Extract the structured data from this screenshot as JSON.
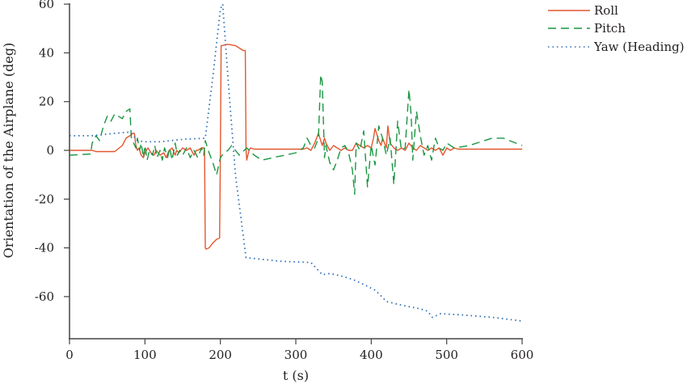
{
  "chart_data": {
    "type": "line",
    "title": "",
    "xlabel": "t (s)",
    "ylabel": "Orientation of the Airplane (deg)",
    "xlim": [
      0,
      600
    ],
    "ylim": [
      -78,
      60
    ],
    "xticks": [
      0,
      100,
      200,
      300,
      400,
      500,
      600
    ],
    "yticks": [
      -60,
      -40,
      -20,
      0,
      20,
      40,
      60
    ],
    "grid": false,
    "legend_position": "upper right (outside plot)",
    "series": [
      {
        "name": "Roll",
        "color": "#e4572e",
        "style": "solid",
        "x": [
          0,
          30,
          35,
          60,
          70,
          75,
          80,
          84,
          86,
          88,
          90,
          92,
          95,
          98,
          100,
          104,
          108,
          112,
          115,
          120,
          125,
          128,
          132,
          136,
          140,
          142,
          145,
          150,
          155,
          160,
          165,
          168,
          170,
          175,
          178,
          179,
          180,
          181,
          185,
          190,
          195,
          199,
          200,
          201,
          202,
          210,
          220,
          230,
          233,
          234,
          235,
          238,
          240,
          245,
          250,
          300,
          310,
          315,
          320,
          325,
          330,
          333,
          335,
          338,
          340,
          345,
          350,
          355,
          360,
          365,
          370,
          375,
          380,
          385,
          390,
          395,
          400,
          403,
          405,
          410,
          413,
          415,
          420,
          422,
          425,
          430,
          435,
          440,
          445,
          450,
          455,
          460,
          465,
          470,
          475,
          480,
          485,
          490,
          495,
          500,
          505,
          510,
          515,
          520,
          560,
          600
        ],
        "values": [
          0,
          0,
          -0.5,
          -0.5,
          2,
          5,
          6,
          7,
          7,
          2,
          0,
          1,
          -2,
          -3,
          -1,
          1,
          -1,
          -2,
          0,
          -2,
          -1,
          -3,
          0,
          1,
          -2,
          0,
          -1,
          1,
          0,
          1,
          -2,
          0,
          0,
          1,
          1,
          0,
          -40,
          -40.5,
          -40,
          -38,
          -36.5,
          -36,
          0,
          43,
          43,
          43.5,
          43,
          41,
          41,
          0,
          -4,
          0,
          1,
          0.5,
          0.5,
          0.5,
          0.5,
          1,
          0,
          3,
          7,
          4,
          2,
          5,
          3,
          0,
          2,
          1,
          0,
          1,
          0,
          0,
          3,
          2,
          1,
          2,
          1,
          5,
          9,
          4,
          2,
          5,
          1,
          10,
          3,
          1,
          0,
          1,
          0,
          3,
          1,
          0,
          2,
          1,
          0,
          1,
          0,
          1,
          -2,
          1,
          0,
          1,
          0.5,
          0.5,
          0.5,
          0.5
        ]
      },
      {
        "name": "Pitch",
        "color": "#1a9641",
        "style": "dashed",
        "x": [
          0,
          28,
          30,
          35,
          40,
          45,
          50,
          55,
          60,
          65,
          70,
          75,
          80,
          82,
          85,
          88,
          90,
          93,
          95,
          98,
          100,
          103,
          106,
          110,
          113,
          116,
          120,
          123,
          126,
          130,
          133,
          136,
          140,
          143,
          146,
          150,
          155,
          160,
          165,
          170,
          175,
          178,
          180,
          185,
          190,
          195,
          200,
          205,
          210,
          215,
          225,
          235,
          245,
          255,
          270,
          285,
          300,
          310,
          315,
          320,
          325,
          330,
          333,
          335,
          338,
          340,
          345,
          350,
          355,
          360,
          365,
          370,
          375,
          378,
          380,
          385,
          390,
          395,
          400,
          405,
          410,
          415,
          420,
          425,
          430,
          435,
          440,
          445,
          450,
          453,
          455,
          460,
          465,
          470,
          475,
          480,
          485,
          490,
          495,
          500,
          510,
          530,
          560,
          575,
          600
        ],
        "values": [
          -2,
          -1.5,
          3,
          6,
          4,
          10,
          14,
          12,
          15,
          14,
          13,
          16,
          17,
          5,
          3,
          1,
          5,
          0,
          3,
          -3,
          2,
          -4,
          0,
          -2,
          2,
          -3,
          0,
          -4,
          1,
          -3,
          1,
          -4,
          3,
          -2,
          0,
          -2,
          1,
          -3,
          0,
          -3,
          1,
          -2,
          4,
          -1,
          -5,
          -10,
          -3,
          -1,
          0,
          2,
          -2,
          1,
          -2,
          -4,
          -3,
          -2,
          -1,
          1,
          5,
          2,
          1,
          5,
          31,
          28,
          -3,
          2,
          -5,
          -8,
          -4,
          1,
          2,
          -1,
          -8,
          -18,
          3,
          0,
          8,
          -15,
          2,
          -6,
          10,
          5,
          -2,
          5,
          -14,
          12,
          0,
          1,
          25,
          14,
          -4,
          16,
          6,
          -2,
          2,
          -4,
          5,
          1,
          0,
          3,
          1,
          2,
          5,
          5,
          2
        ]
      },
      {
        "name": "Yaw (Heading)",
        "color": "#2b6cb0",
        "style": "dotted",
        "x": [
          0,
          30,
          60,
          80,
          85,
          90,
          100,
          120,
          150,
          180,
          190,
          200,
          203,
          210,
          220,
          234,
          250,
          280,
          320,
          335,
          345,
          360,
          376,
          390,
          406,
          420,
          440,
          465,
          475,
          481,
          492,
          520,
          560,
          600
        ],
        "values": [
          6,
          6,
          7,
          7.5,
          6,
          4,
          3.5,
          3.5,
          4.5,
          5,
          30,
          58,
          60,
          30,
          -10,
          -44,
          -44.5,
          -45.5,
          -46,
          -51,
          -50.5,
          -51.5,
          -53,
          -55,
          -57.5,
          -62,
          -63.5,
          -65,
          -66,
          -68.5,
          -67,
          -67.5,
          -68.5,
          -70
        ]
      }
    ]
  },
  "axes": {
    "x_title": "t (s)",
    "y_title": "Orientation of the Airplane (deg)",
    "x_tick_labels": [
      "0",
      "100",
      "200",
      "300",
      "400",
      "500",
      "600"
    ],
    "y_tick_labels": [
      "60",
      "40",
      "20",
      "0",
      "-20",
      "-40",
      "-60"
    ]
  },
  "legend": {
    "items": [
      {
        "label": "Roll",
        "color": "#e4572e",
        "style": "solid"
      },
      {
        "label": "Pitch",
        "color": "#1a9641",
        "style": "dashed"
      },
      {
        "label": "Yaw (Heading)",
        "color": "#2b6cb0",
        "style": "dotted"
      }
    ]
  }
}
